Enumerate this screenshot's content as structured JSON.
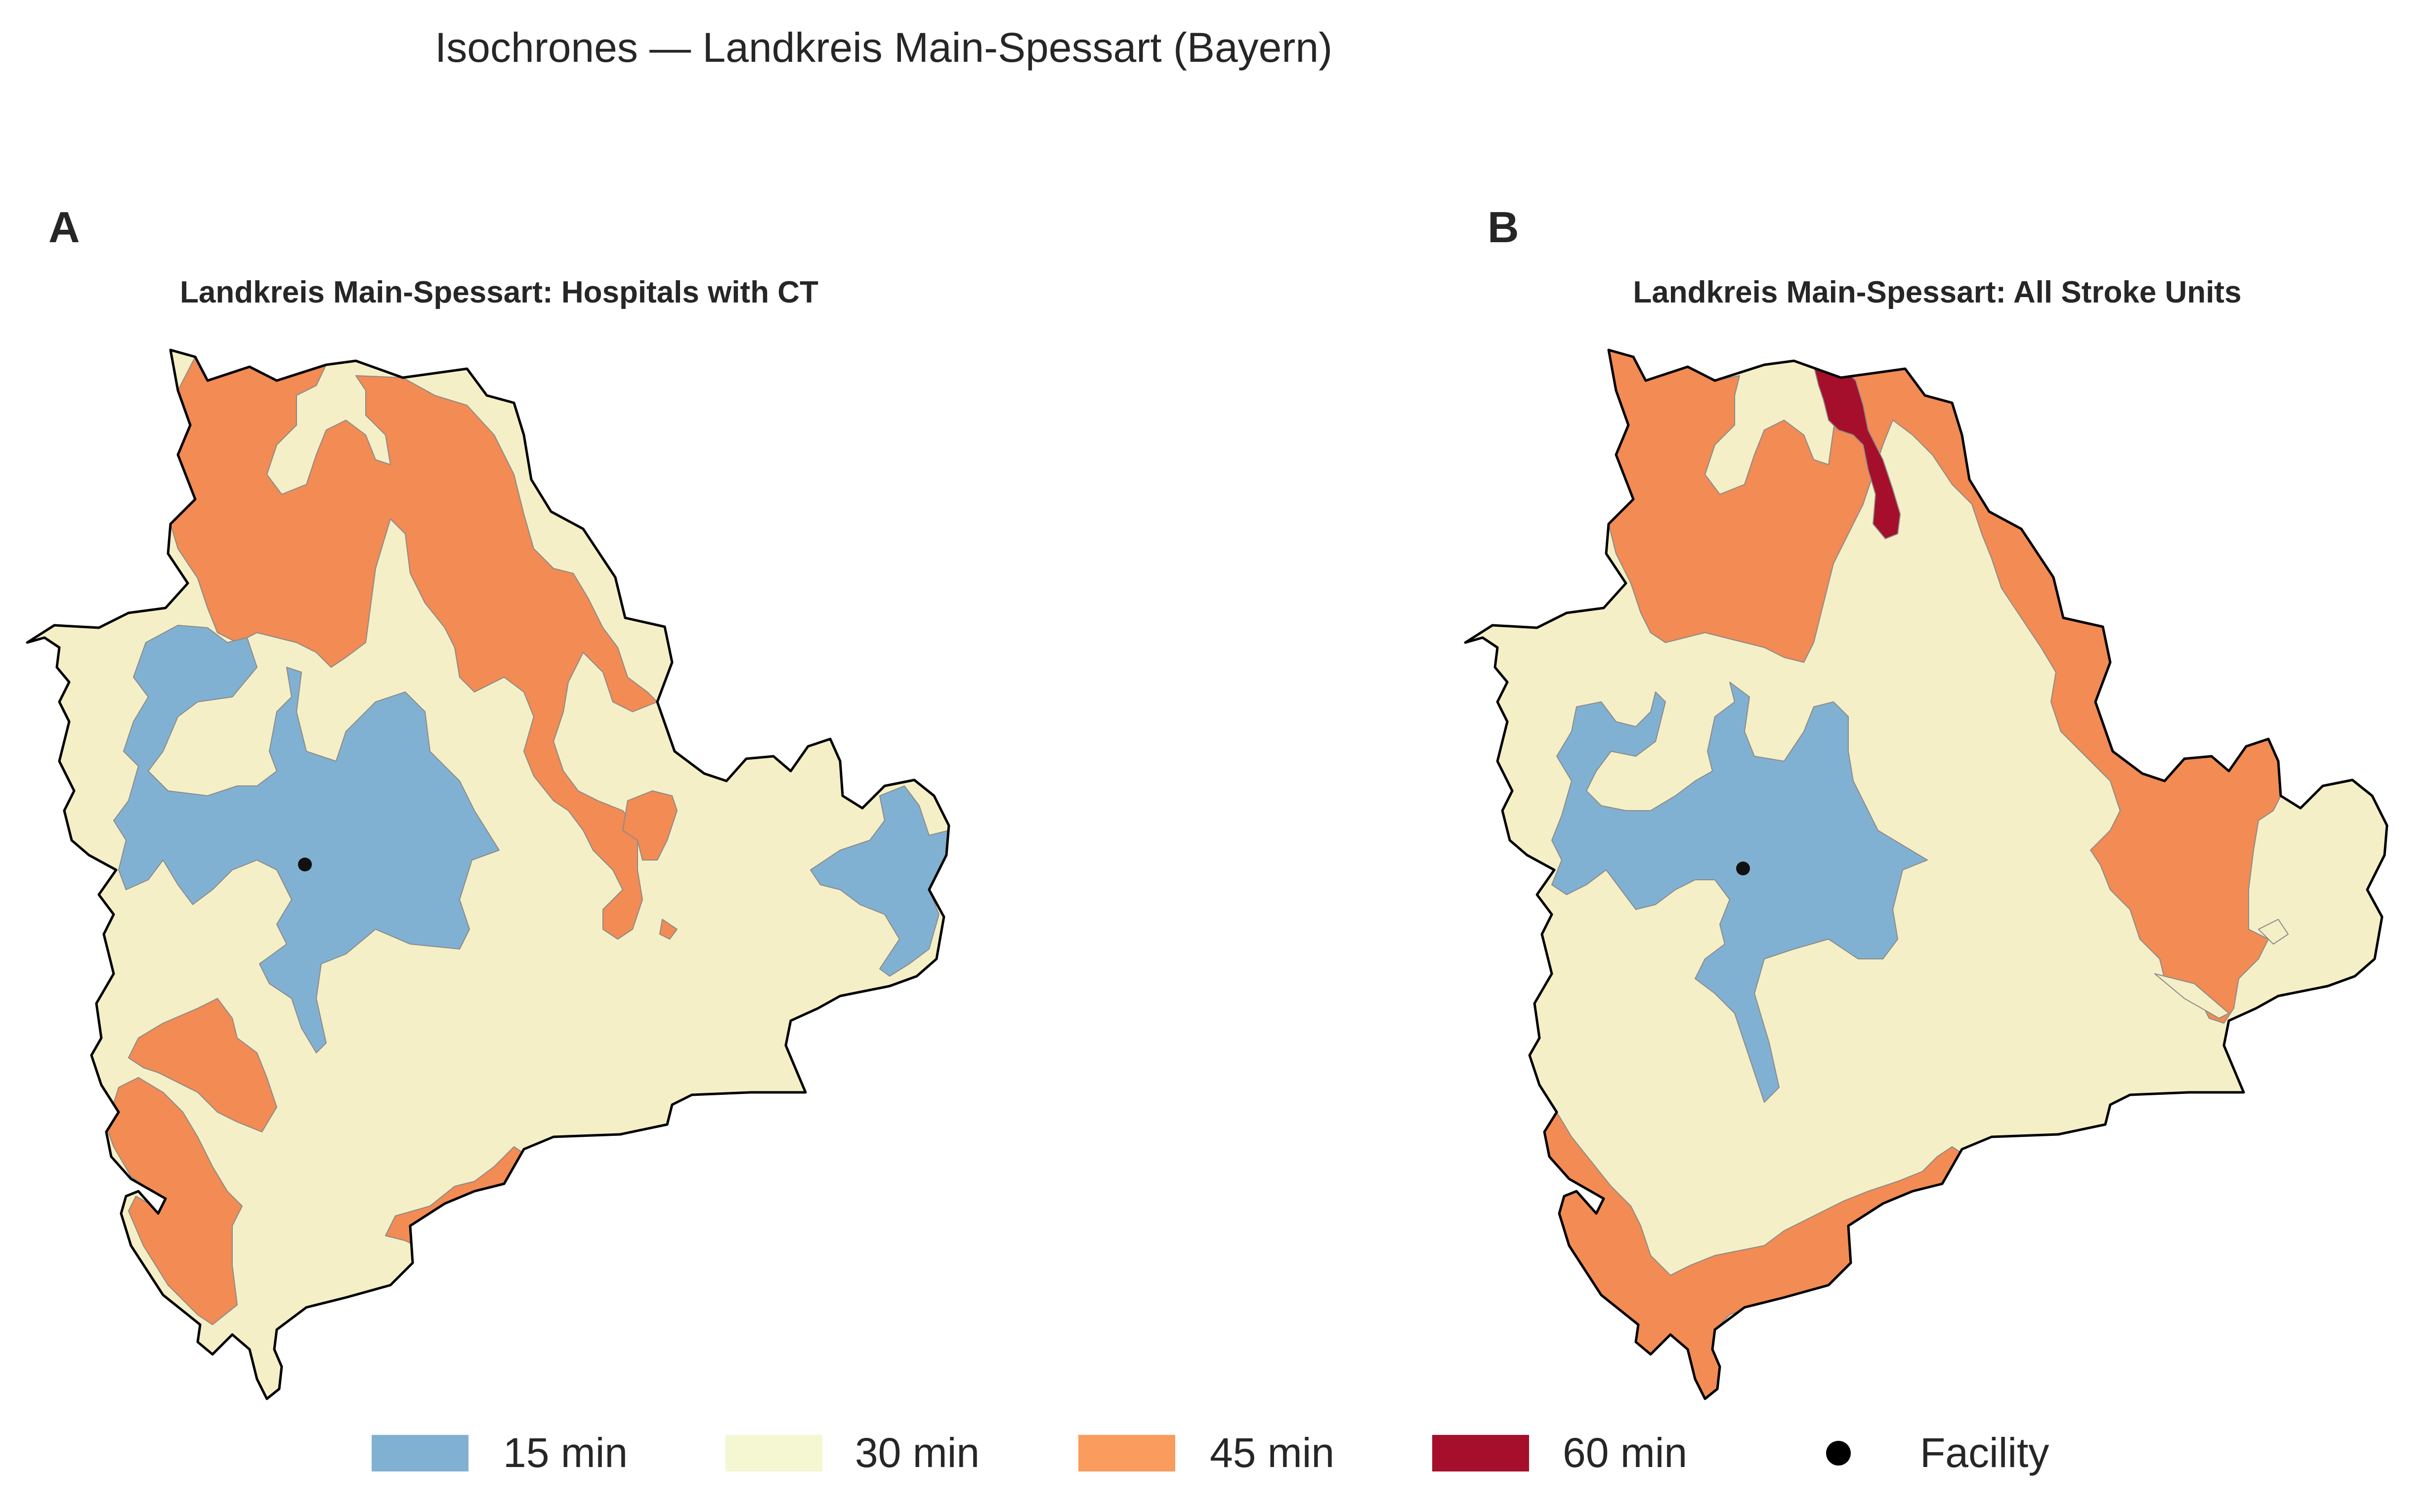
{
  "figure": {
    "title": "Isochrones — Landkreis Main-Spessart (Bayern)"
  },
  "panels": [
    {
      "letter": "A",
      "title": "Landkreis Main-Spessart: Hospitals with CT"
    },
    {
      "letter": "B",
      "title": "Landkreis Main-Spessart: All Stroke Units"
    }
  ],
  "legend": {
    "items": [
      {
        "label": "15 min",
        "color": "#81b1d2"
      },
      {
        "label": "30 min",
        "color": "#f4efc6"
      },
      {
        "label": "45 min",
        "color": "#f28b54"
      },
      {
        "label": "60 min",
        "color": "#a50f2c"
      },
      {
        "label": "Facility",
        "color": "#000000",
        "marker": "dot"
      }
    ]
  },
  "colors": {
    "zone_15": "#81b1d2",
    "zone_30": "#f4efc6",
    "zone_45": "#f28b54",
    "zone_60": "#a50f2c",
    "boundary": "#000000"
  }
}
